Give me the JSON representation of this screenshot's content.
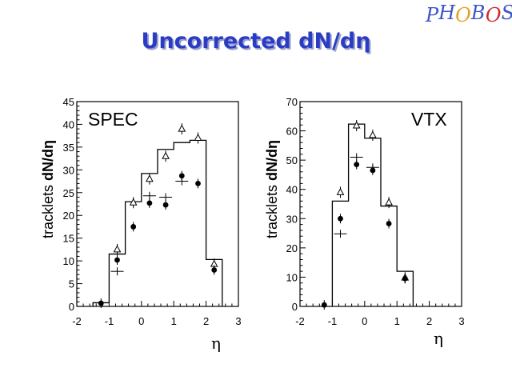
{
  "slide": {
    "title": "Uncorrected dN/dη",
    "logo": {
      "letters": [
        "P",
        "H",
        "O",
        "B",
        "O",
        "S"
      ],
      "colors": [
        "#3a55c8",
        "#3a55c8",
        "#e4a020",
        "#3a55c8",
        "#d02828",
        "#3a55c8"
      ]
    }
  },
  "chart_data": [
    {
      "type": "step-histogram-with-markers",
      "panel_label": "SPEC",
      "ylabel_prefix": "tracklets ",
      "ylabel_bold": "dN/dη",
      "xlabel": "η",
      "xlim": [
        -2,
        3
      ],
      "ylim": [
        0,
        45
      ],
      "xticks": [
        -2,
        -1,
        0,
        1,
        2,
        3
      ],
      "xtick_labels": [
        "-2",
        "-1",
        "0",
        "1",
        "2",
        "3"
      ],
      "yticks": [
        0,
        5,
        10,
        15,
        20,
        25,
        30,
        35,
        40,
        45
      ],
      "ytick_labels": [
        "0",
        "5",
        "10",
        "15",
        "20",
        "25",
        "30",
        "35",
        "40",
        "45"
      ],
      "histogram": {
        "bin_edges": [
          -1.5,
          -1.0,
          -0.5,
          0.0,
          0.5,
          1.0,
          1.5,
          2.0,
          2.5
        ],
        "values": [
          0.8,
          11.5,
          23.0,
          29.2,
          34.5,
          36.0,
          36.5,
          10.3
        ]
      },
      "series": [
        {
          "name": "triangles",
          "marker": "open-triangle",
          "x": [
            -0.75,
            -0.25,
            0.25,
            0.75,
            1.25,
            1.75,
            2.25
          ],
          "y": [
            12.5,
            22.8,
            28.0,
            33.0,
            39.0,
            37.0,
            9.3
          ]
        },
        {
          "name": "circles",
          "marker": "filled-circle",
          "x": [
            -1.25,
            -0.75,
            -0.25,
            0.25,
            0.75,
            1.25,
            1.75,
            2.25
          ],
          "y": [
            0.7,
            10.2,
            17.5,
            22.7,
            22.3,
            28.7,
            27.0,
            8.0
          ]
        },
        {
          "name": "crosses",
          "marker": "cross",
          "x": [
            -0.75,
            0.25,
            0.75,
            1.25
          ],
          "y": [
            7.7,
            24.3,
            24.0,
            27.5
          ]
        }
      ]
    },
    {
      "type": "step-histogram-with-markers",
      "panel_label": "VTX",
      "ylabel_prefix": "tracklets ",
      "ylabel_bold": "dN/dη",
      "xlabel": "η",
      "xlim": [
        -2,
        3
      ],
      "ylim": [
        0,
        70
      ],
      "xticks": [
        -2,
        -1,
        0,
        1,
        2,
        3
      ],
      "xtick_labels": [
        "-2",
        "-1",
        "0",
        "1",
        "2",
        "3"
      ],
      "yticks": [
        0,
        10,
        20,
        30,
        40,
        50,
        60,
        70
      ],
      "ytick_labels": [
        "0",
        "10",
        "20",
        "30",
        "40",
        "50",
        "60",
        "70"
      ],
      "histogram": {
        "bin_edges": [
          -1.0,
          -0.5,
          0.0,
          0.5,
          1.0,
          1.5
        ],
        "values": [
          36.0,
          62.3,
          57.5,
          34.3,
          12.0
        ]
      },
      "series": [
        {
          "name": "triangles",
          "marker": "open-triangle",
          "x": [
            -0.75,
            -0.25,
            0.25,
            0.75,
            1.25
          ],
          "y": [
            39.0,
            61.8,
            58.5,
            35.5,
            9.8
          ]
        },
        {
          "name": "circles",
          "marker": "filled-circle",
          "x": [
            -1.25,
            -0.75,
            -0.25,
            0.25,
            0.75,
            1.25
          ],
          "y": [
            0.5,
            30.0,
            48.5,
            46.5,
            28.3,
            9.5
          ]
        },
        {
          "name": "crosses",
          "marker": "cross",
          "x": [
            -0.75,
            -0.25,
            0.25
          ],
          "y": [
            24.8,
            51.0,
            47.5
          ]
        }
      ]
    }
  ]
}
